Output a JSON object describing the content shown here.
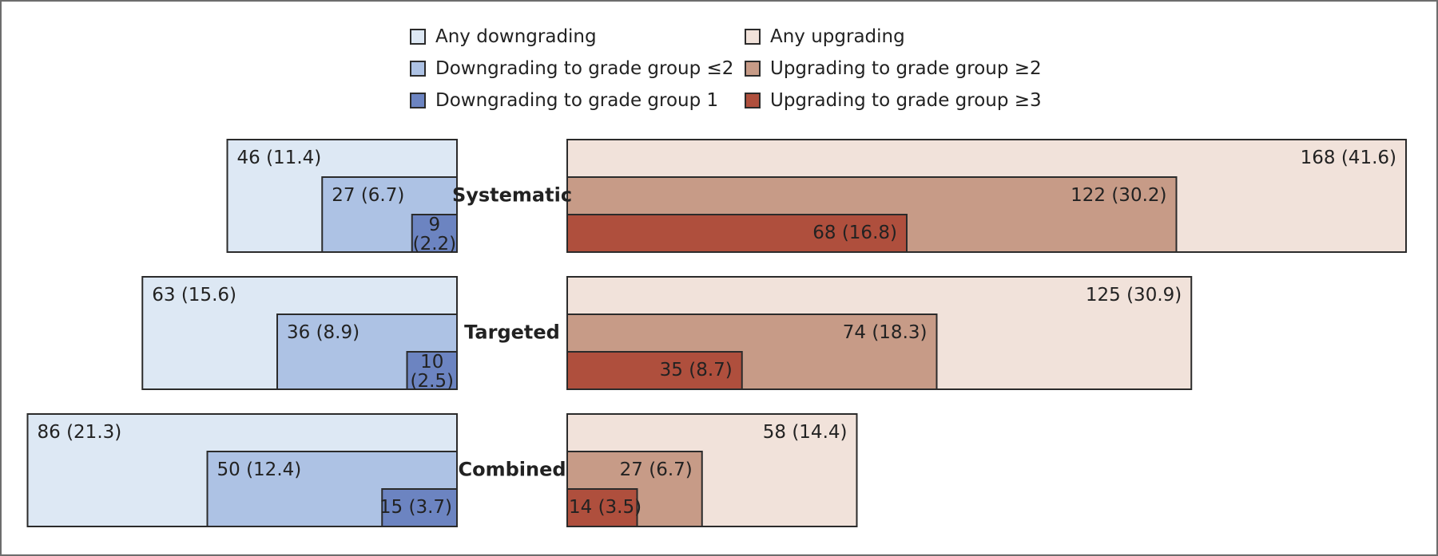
{
  "chart_data": {
    "type": "bar",
    "subtype": "nested-bidirectional",
    "categories": [
      "Systematic",
      "Targeted",
      "Combined"
    ],
    "downgrading": [
      {
        "name": "Any downgrading",
        "color": "#dde8f4",
        "labels": [
          "46 (11.4)",
          "63 (15.6)",
          "86 (21.3)"
        ],
        "values": [
          46,
          63,
          86
        ]
      },
      {
        "name": "Downgrading to grade group ≤2",
        "color": "#adc2e4",
        "labels": [
          "27 (6.7)",
          "36 (8.9)",
          "50 (12.4)"
        ],
        "values": [
          27,
          36,
          50
        ]
      },
      {
        "name": "Downgrading to grade group 1",
        "color": "#6c84c1",
        "labels": [
          "9 (2.2)",
          "10 (2.5)",
          "15 (3.7)"
        ],
        "values": [
          9,
          10,
          15
        ]
      }
    ],
    "upgrading": [
      {
        "name": "Any upgrading",
        "color": "#f1e2da",
        "labels": [
          "168 (41.6)",
          "125 (30.9)",
          "58 (14.4)"
        ],
        "values": [
          168,
          125,
          58
        ]
      },
      {
        "name": "Upgrading to grade group ≥2",
        "color": "#c79b87",
        "labels": [
          "122 (30.2)",
          "74 (18.3)",
          "27 (6.7)"
        ],
        "values": [
          122,
          74,
          27
        ]
      },
      {
        "name": "Upgrading to grade group ≥3",
        "color": "#af4f3d",
        "labels": [
          "68 (16.8)",
          "35 (8.7)",
          "14 (3.5)"
        ],
        "values": [
          68,
          35,
          14
        ]
      }
    ]
  }
}
